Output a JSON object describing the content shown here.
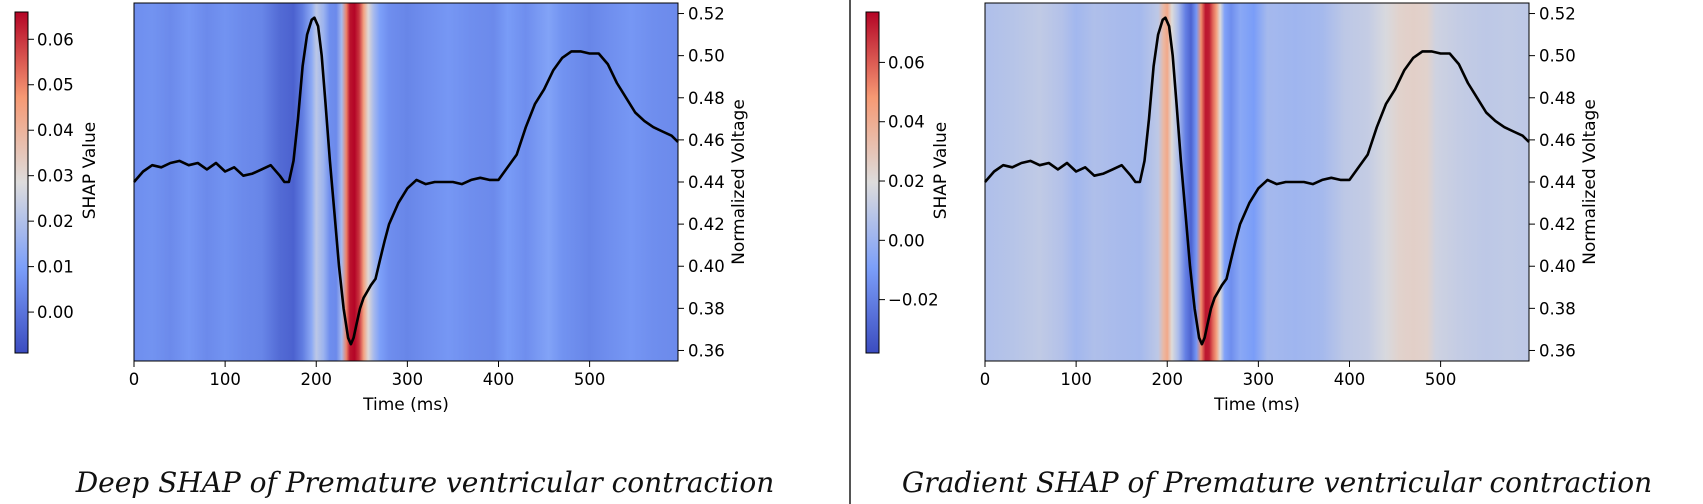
{
  "chart_data": [
    {
      "type": "heatmap",
      "caption": "Deep SHAP of Premature ventricular contraction",
      "xlabel": "Time (ms)",
      "ylabel_right": "Normalized Voltage",
      "colorbar_label": "SHAP Value",
      "xlim": [
        0,
        597
      ],
      "ylim": [
        0.355,
        0.525
      ],
      "x_ticks": [
        0,
        100,
        200,
        300,
        400,
        500
      ],
      "y_ticks": [
        0.36,
        0.38,
        0.4,
        0.42,
        0.44,
        0.46,
        0.48,
        0.5,
        0.52
      ],
      "y_tick_labels": [
        "0.36",
        "0.38",
        "0.40",
        "0.42",
        "0.44",
        "0.46",
        "0.48",
        "0.50",
        "0.52"
      ],
      "colorbar_range": [
        -0.009,
        0.066
      ],
      "colorbar_ticks": [
        0.0,
        0.01,
        0.02,
        0.03,
        0.04,
        0.05,
        0.06
      ],
      "colorbar_tick_labels": [
        "0.00",
        "0.01",
        "0.02",
        "0.03",
        "0.04",
        "0.05",
        "0.06"
      ],
      "colormap": "coolwarm",
      "shap_values": [
        {
          "x": 0,
          "v": 0.006
        },
        {
          "x": 20,
          "v": 0.007
        },
        {
          "x": 40,
          "v": 0.005
        },
        {
          "x": 60,
          "v": 0.008
        },
        {
          "x": 80,
          "v": 0.005
        },
        {
          "x": 100,
          "v": 0.007
        },
        {
          "x": 120,
          "v": 0.005
        },
        {
          "x": 140,
          "v": 0.004
        },
        {
          "x": 160,
          "v": -0.002
        },
        {
          "x": 175,
          "v": -0.004
        },
        {
          "x": 185,
          "v": 0.002
        },
        {
          "x": 195,
          "v": 0.013
        },
        {
          "x": 200,
          "v": 0.022
        },
        {
          "x": 208,
          "v": 0.016
        },
        {
          "x": 215,
          "v": 0.006
        },
        {
          "x": 222,
          "v": 0.005
        },
        {
          "x": 228,
          "v": 0.018
        },
        {
          "x": 233,
          "v": 0.05
        },
        {
          "x": 237,
          "v": 0.064
        },
        {
          "x": 242,
          "v": 0.066
        },
        {
          "x": 247,
          "v": 0.06
        },
        {
          "x": 252,
          "v": 0.045
        },
        {
          "x": 257,
          "v": 0.03
        },
        {
          "x": 263,
          "v": 0.018
        },
        {
          "x": 270,
          "v": 0.01
        },
        {
          "x": 280,
          "v": 0.006
        },
        {
          "x": 300,
          "v": 0.004
        },
        {
          "x": 320,
          "v": 0.006
        },
        {
          "x": 345,
          "v": 0.008
        },
        {
          "x": 370,
          "v": 0.006
        },
        {
          "x": 395,
          "v": 0.005
        },
        {
          "x": 410,
          "v": 0.009
        },
        {
          "x": 430,
          "v": 0.006
        },
        {
          "x": 455,
          "v": 0.011
        },
        {
          "x": 470,
          "v": 0.007
        },
        {
          "x": 500,
          "v": 0.004
        },
        {
          "x": 520,
          "v": 0.006
        },
        {
          "x": 545,
          "v": 0.008
        },
        {
          "x": 570,
          "v": 0.006
        },
        {
          "x": 597,
          "v": 0.005
        }
      ],
      "ecg": {
        "x": [
          0,
          10,
          20,
          30,
          40,
          50,
          60,
          70,
          80,
          90,
          100,
          110,
          120,
          130,
          140,
          150,
          160,
          165,
          170,
          175,
          180,
          185,
          190,
          195,
          198,
          202,
          206,
          210,
          215,
          220,
          225,
          230,
          235,
          238,
          241,
          244,
          248,
          252,
          256,
          260,
          265,
          270,
          275,
          280,
          290,
          300,
          310,
          320,
          330,
          340,
          350,
          360,
          370,
          380,
          390,
          400,
          410,
          420,
          430,
          440,
          450,
          460,
          470,
          480,
          490,
          500,
          510,
          520,
          530,
          540,
          550,
          560,
          570,
          580,
          590,
          597
        ],
        "y": [
          0.44,
          0.445,
          0.448,
          0.447,
          0.449,
          0.45,
          0.448,
          0.449,
          0.446,
          0.449,
          0.445,
          0.447,
          0.443,
          0.444,
          0.446,
          0.448,
          0.443,
          0.44,
          0.44,
          0.45,
          0.47,
          0.495,
          0.51,
          0.517,
          0.518,
          0.514,
          0.5,
          0.478,
          0.45,
          0.425,
          0.4,
          0.38,
          0.366,
          0.363,
          0.366,
          0.372,
          0.38,
          0.385,
          0.388,
          0.391,
          0.394,
          0.403,
          0.412,
          0.42,
          0.43,
          0.437,
          0.441,
          0.439,
          0.44,
          0.44,
          0.44,
          0.439,
          0.441,
          0.442,
          0.441,
          0.441,
          0.447,
          0.453,
          0.466,
          0.477,
          0.484,
          0.493,
          0.499,
          0.502,
          0.502,
          0.501,
          0.501,
          0.496,
          0.487,
          0.48,
          0.473,
          0.469,
          0.466,
          0.464,
          0.462,
          0.459
        ]
      }
    },
    {
      "type": "heatmap",
      "caption": "Gradient SHAP of Premature ventricular contraction",
      "xlabel": "Time (ms)",
      "ylabel_right": "Normalized Voltage",
      "colorbar_label": "SHAP Value",
      "xlim": [
        0,
        597
      ],
      "ylim": [
        0.355,
        0.525
      ],
      "x_ticks": [
        0,
        100,
        200,
        300,
        400,
        500
      ],
      "y_ticks": [
        0.36,
        0.38,
        0.4,
        0.42,
        0.44,
        0.46,
        0.48,
        0.5,
        0.52
      ],
      "y_tick_labels": [
        "0.36",
        "0.38",
        "0.40",
        "0.42",
        "0.44",
        "0.46",
        "0.48",
        "0.50",
        "0.52"
      ],
      "colorbar_range": [
        -0.038,
        0.077
      ],
      "colorbar_ticks": [
        -0.02,
        0.0,
        0.02,
        0.04,
        0.06
      ],
      "colorbar_tick_labels": [
        "−0.02",
        "0.00",
        "0.02",
        "0.04",
        "0.06"
      ],
      "colormap": "coolwarm",
      "shap_values": [
        {
          "x": 0,
          "v": 0.006
        },
        {
          "x": 30,
          "v": 0.008
        },
        {
          "x": 60,
          "v": 0.011
        },
        {
          "x": 85,
          "v": 0.007
        },
        {
          "x": 100,
          "v": 0.002
        },
        {
          "x": 120,
          "v": 0.006
        },
        {
          "x": 145,
          "v": 0.004
        },
        {
          "x": 170,
          "v": 0.003
        },
        {
          "x": 190,
          "v": 0.01
        },
        {
          "x": 196,
          "v": 0.035
        },
        {
          "x": 200,
          "v": 0.042
        },
        {
          "x": 205,
          "v": 0.02
        },
        {
          "x": 212,
          "v": 0.005
        },
        {
          "x": 220,
          "v": -0.02
        },
        {
          "x": 226,
          "v": -0.03
        },
        {
          "x": 232,
          "v": -0.012
        },
        {
          "x": 237,
          "v": 0.05
        },
        {
          "x": 242,
          "v": 0.074
        },
        {
          "x": 246,
          "v": 0.072
        },
        {
          "x": 250,
          "v": 0.058
        },
        {
          "x": 254,
          "v": 0.045
        },
        {
          "x": 258,
          "v": 0.02
        },
        {
          "x": 263,
          "v": -0.008
        },
        {
          "x": 270,
          "v": -0.015
        },
        {
          "x": 280,
          "v": -0.005
        },
        {
          "x": 295,
          "v": -0.01
        },
        {
          "x": 310,
          "v": 0.003
        },
        {
          "x": 340,
          "v": 0.001
        },
        {
          "x": 370,
          "v": 0.003
        },
        {
          "x": 395,
          "v": 0.01
        },
        {
          "x": 420,
          "v": 0.012
        },
        {
          "x": 440,
          "v": 0.018
        },
        {
          "x": 455,
          "v": 0.024
        },
        {
          "x": 470,
          "v": 0.025
        },
        {
          "x": 485,
          "v": 0.024
        },
        {
          "x": 495,
          "v": 0.015
        },
        {
          "x": 520,
          "v": 0.012
        },
        {
          "x": 550,
          "v": 0.01
        },
        {
          "x": 575,
          "v": 0.011
        },
        {
          "x": 597,
          "v": 0.01
        }
      ],
      "ecg": {
        "x": [
          0,
          10,
          20,
          30,
          40,
          50,
          60,
          70,
          80,
          90,
          100,
          110,
          120,
          130,
          140,
          150,
          160,
          165,
          170,
          175,
          180,
          185,
          190,
          195,
          198,
          202,
          206,
          210,
          215,
          220,
          225,
          230,
          235,
          238,
          241,
          244,
          248,
          252,
          256,
          260,
          265,
          270,
          275,
          280,
          290,
          300,
          310,
          320,
          330,
          340,
          350,
          360,
          370,
          380,
          390,
          400,
          410,
          420,
          430,
          440,
          450,
          460,
          470,
          480,
          490,
          500,
          510,
          520,
          530,
          540,
          550,
          560,
          570,
          580,
          590,
          597
        ],
        "y": [
          0.44,
          0.445,
          0.448,
          0.447,
          0.449,
          0.45,
          0.448,
          0.449,
          0.446,
          0.449,
          0.445,
          0.447,
          0.443,
          0.444,
          0.446,
          0.448,
          0.443,
          0.44,
          0.44,
          0.45,
          0.47,
          0.495,
          0.51,
          0.517,
          0.518,
          0.514,
          0.5,
          0.478,
          0.45,
          0.425,
          0.4,
          0.38,
          0.366,
          0.363,
          0.366,
          0.372,
          0.38,
          0.385,
          0.388,
          0.391,
          0.394,
          0.403,
          0.412,
          0.42,
          0.43,
          0.437,
          0.441,
          0.439,
          0.44,
          0.44,
          0.44,
          0.439,
          0.441,
          0.442,
          0.441,
          0.441,
          0.447,
          0.453,
          0.466,
          0.477,
          0.484,
          0.493,
          0.499,
          0.502,
          0.502,
          0.501,
          0.501,
          0.496,
          0.487,
          0.48,
          0.473,
          0.469,
          0.466,
          0.464,
          0.462,
          0.459
        ]
      }
    }
  ]
}
